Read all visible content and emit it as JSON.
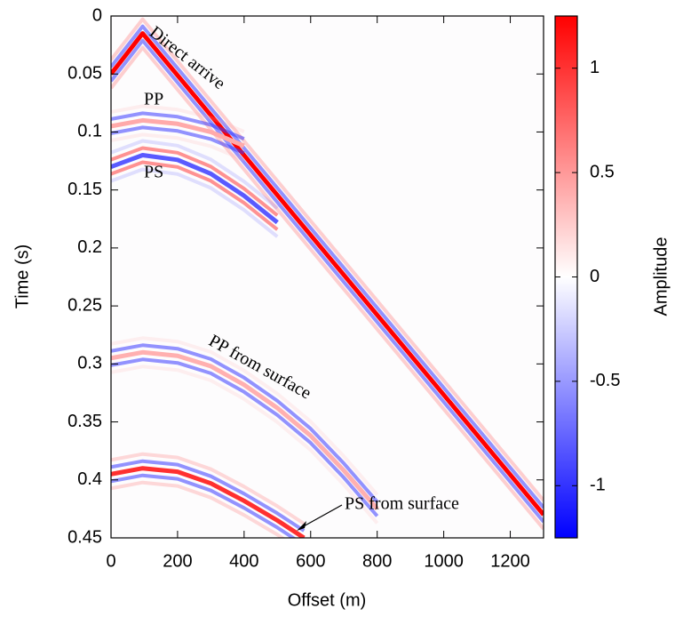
{
  "chart_data": {
    "type": "wavefield",
    "xlabel": "Offset (m)",
    "ylabel": "Time (s)",
    "colorbar_label": "Amplitude",
    "xlim": [
      0,
      1300
    ],
    "xticks": [
      0,
      200,
      400,
      600,
      800,
      1000,
      1200
    ],
    "ylim": [
      0,
      0.45
    ],
    "yticks": [
      0,
      0.05,
      0.1,
      0.15,
      0.2,
      0.25,
      0.3,
      0.35,
      0.4,
      0.45
    ],
    "y_inverted": true,
    "zlim": [
      -1.25,
      1.25
    ],
    "zticks": [
      -1,
      -0.5,
      0,
      0.5,
      1
    ],
    "colormap": [
      "#0000ff",
      "#ffffff",
      "#ff0000"
    ],
    "series": [
      {
        "name": "Direct arrive",
        "color": "#ff0000",
        "x": [
          0,
          95,
          1300
        ],
        "values": [
          0.05,
          0.015,
          0.43
        ]
      },
      {
        "name": "PP",
        "color": "#ffaaaa",
        "x": [
          0,
          95,
          200,
          300,
          400
        ],
        "values": [
          0.095,
          0.09,
          0.093,
          0.1,
          0.112
        ]
      },
      {
        "name": "PS",
        "color": "#5a5aff",
        "x": [
          0,
          95,
          200,
          300,
          400,
          500
        ],
        "values": [
          0.13,
          0.12,
          0.124,
          0.136,
          0.155,
          0.178
        ]
      },
      {
        "name": "PP from surface",
        "color": "#ffb0b0",
        "x": [
          0,
          95,
          200,
          300,
          400,
          500,
          600,
          700,
          800
        ],
        "values": [
          0.295,
          0.29,
          0.293,
          0.302,
          0.318,
          0.338,
          0.362,
          0.392,
          0.425
        ]
      },
      {
        "name": "PS from surface",
        "color": "#ff3030",
        "x": [
          0,
          95,
          200,
          300,
          400,
          500,
          580
        ],
        "values": [
          0.395,
          0.39,
          0.393,
          0.403,
          0.418,
          0.435,
          0.45
        ]
      }
    ]
  }
}
